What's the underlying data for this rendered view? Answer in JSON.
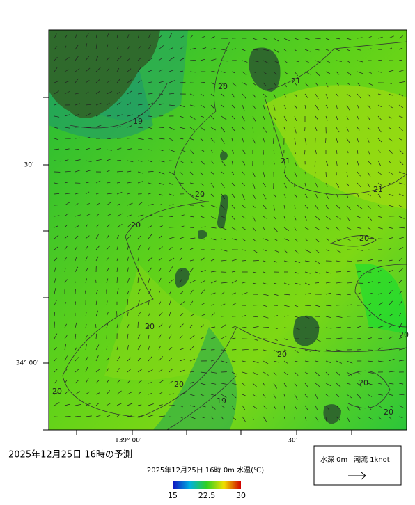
{
  "map": {
    "title": "2025年12月25日  16時の予測",
    "subtitle": "2025年12月25日 16時 0m 水温(℃)",
    "lat_labels": [
      "30′",
      "34° 00′"
    ],
    "lon_labels": [
      "139° 00′",
      "30′"
    ],
    "contour_labels": [
      20,
      21,
      19,
      21,
      21,
      20,
      20,
      20,
      20,
      20,
      20,
      20,
      20,
      20,
      19,
      20
    ],
    "colorbar": {
      "lim": [
        15,
        30
      ],
      "ticks": [
        15,
        22.5,
        30
      ]
    },
    "legend": {
      "depth": "水深 0m",
      "current": "潮流 1knot"
    }
  }
}
